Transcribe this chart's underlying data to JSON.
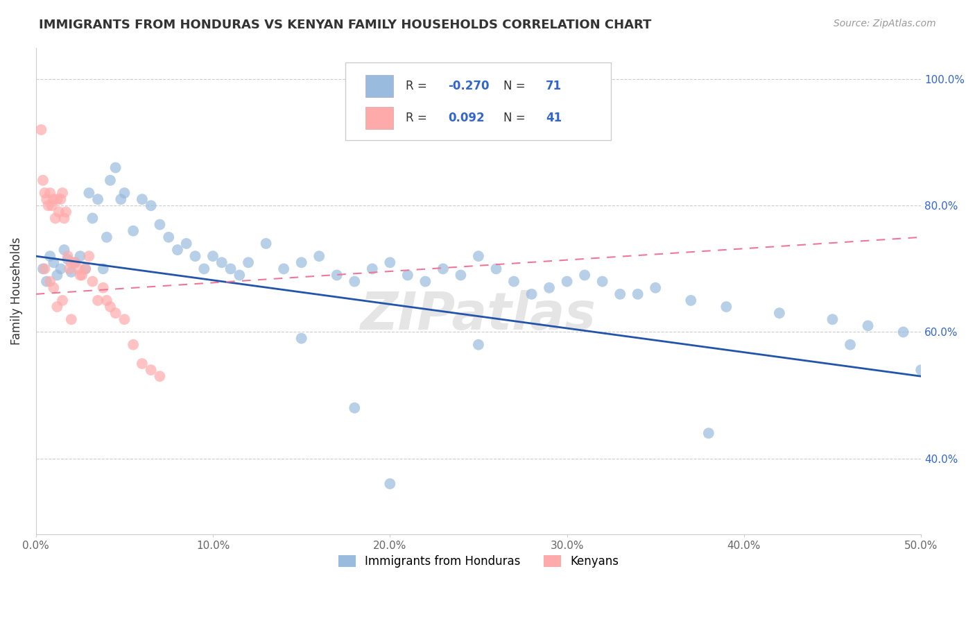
{
  "title": "IMMIGRANTS FROM HONDURAS VS KENYAN FAMILY HOUSEHOLDS CORRELATION CHART",
  "source": "Source: ZipAtlas.com",
  "ylabel": "Family Households",
  "xlim": [
    0.0,
    0.5
  ],
  "ylim": [
    0.28,
    1.05
  ],
  "xticks": [
    0.0,
    0.1,
    0.2,
    0.3,
    0.4,
    0.5
  ],
  "yticks": [
    0.4,
    0.6,
    0.8,
    1.0
  ],
  "xtick_labels": [
    "0.0%",
    "10.0%",
    "20.0%",
    "30.0%",
    "40.0%",
    "50.0%"
  ],
  "ytick_labels": [
    "40.0%",
    "60.0%",
    "80.0%",
    "100.0%"
  ],
  "legend_labels": [
    "Immigrants from Honduras",
    "Kenyans"
  ],
  "blue_R": -0.27,
  "blue_N": 71,
  "pink_R": 0.092,
  "pink_N": 41,
  "blue_color": "#99BBDD",
  "pink_color": "#FFAAAA",
  "blue_line_color": "#2255AA",
  "pink_line_color": "#EE7799",
  "watermark": "ZIPatlas",
  "blue_scatter_x": [
    0.004,
    0.006,
    0.008,
    0.01,
    0.012,
    0.014,
    0.016,
    0.018,
    0.02,
    0.022,
    0.025,
    0.028,
    0.03,
    0.032,
    0.035,
    0.038,
    0.04,
    0.042,
    0.045,
    0.048,
    0.05,
    0.055,
    0.06,
    0.065,
    0.07,
    0.075,
    0.08,
    0.085,
    0.09,
    0.095,
    0.1,
    0.105,
    0.11,
    0.115,
    0.12,
    0.13,
    0.14,
    0.15,
    0.16,
    0.17,
    0.18,
    0.19,
    0.2,
    0.21,
    0.22,
    0.23,
    0.24,
    0.25,
    0.26,
    0.27,
    0.28,
    0.29,
    0.3,
    0.31,
    0.32,
    0.33,
    0.34,
    0.35,
    0.37,
    0.39,
    0.42,
    0.45,
    0.47,
    0.49,
    0.5,
    0.25,
    0.15,
    0.18,
    0.38,
    0.46,
    0.2
  ],
  "blue_scatter_y": [
    0.7,
    0.68,
    0.72,
    0.71,
    0.69,
    0.7,
    0.73,
    0.715,
    0.695,
    0.71,
    0.72,
    0.7,
    0.82,
    0.78,
    0.81,
    0.7,
    0.75,
    0.84,
    0.86,
    0.81,
    0.82,
    0.76,
    0.81,
    0.8,
    0.77,
    0.75,
    0.73,
    0.74,
    0.72,
    0.7,
    0.72,
    0.71,
    0.7,
    0.69,
    0.71,
    0.74,
    0.7,
    0.71,
    0.72,
    0.69,
    0.68,
    0.7,
    0.71,
    0.69,
    0.68,
    0.7,
    0.69,
    0.72,
    0.7,
    0.68,
    0.66,
    0.67,
    0.68,
    0.69,
    0.68,
    0.66,
    0.66,
    0.67,
    0.65,
    0.64,
    0.63,
    0.62,
    0.61,
    0.6,
    0.54,
    0.58,
    0.59,
    0.48,
    0.44,
    0.58,
    0.36
  ],
  "pink_scatter_x": [
    0.003,
    0.004,
    0.005,
    0.006,
    0.007,
    0.008,
    0.009,
    0.01,
    0.011,
    0.012,
    0.013,
    0.014,
    0.015,
    0.016,
    0.017,
    0.018,
    0.019,
    0.02,
    0.022,
    0.024,
    0.026,
    0.028,
    0.03,
    0.032,
    0.035,
    0.038,
    0.04,
    0.042,
    0.045,
    0.05,
    0.055,
    0.06,
    0.065,
    0.07,
    0.005,
    0.008,
    0.01,
    0.012,
    0.015,
    0.025,
    0.02
  ],
  "pink_scatter_y": [
    0.92,
    0.84,
    0.82,
    0.81,
    0.8,
    0.82,
    0.8,
    0.81,
    0.78,
    0.81,
    0.79,
    0.81,
    0.82,
    0.78,
    0.79,
    0.72,
    0.7,
    0.71,
    0.71,
    0.7,
    0.69,
    0.7,
    0.72,
    0.68,
    0.65,
    0.67,
    0.65,
    0.64,
    0.63,
    0.62,
    0.58,
    0.55,
    0.54,
    0.53,
    0.7,
    0.68,
    0.67,
    0.64,
    0.65,
    0.69,
    0.62
  ],
  "blue_line_y0": 0.72,
  "blue_line_y1": 0.53,
  "pink_line_y0": 0.66,
  "pink_line_y1": 0.75
}
